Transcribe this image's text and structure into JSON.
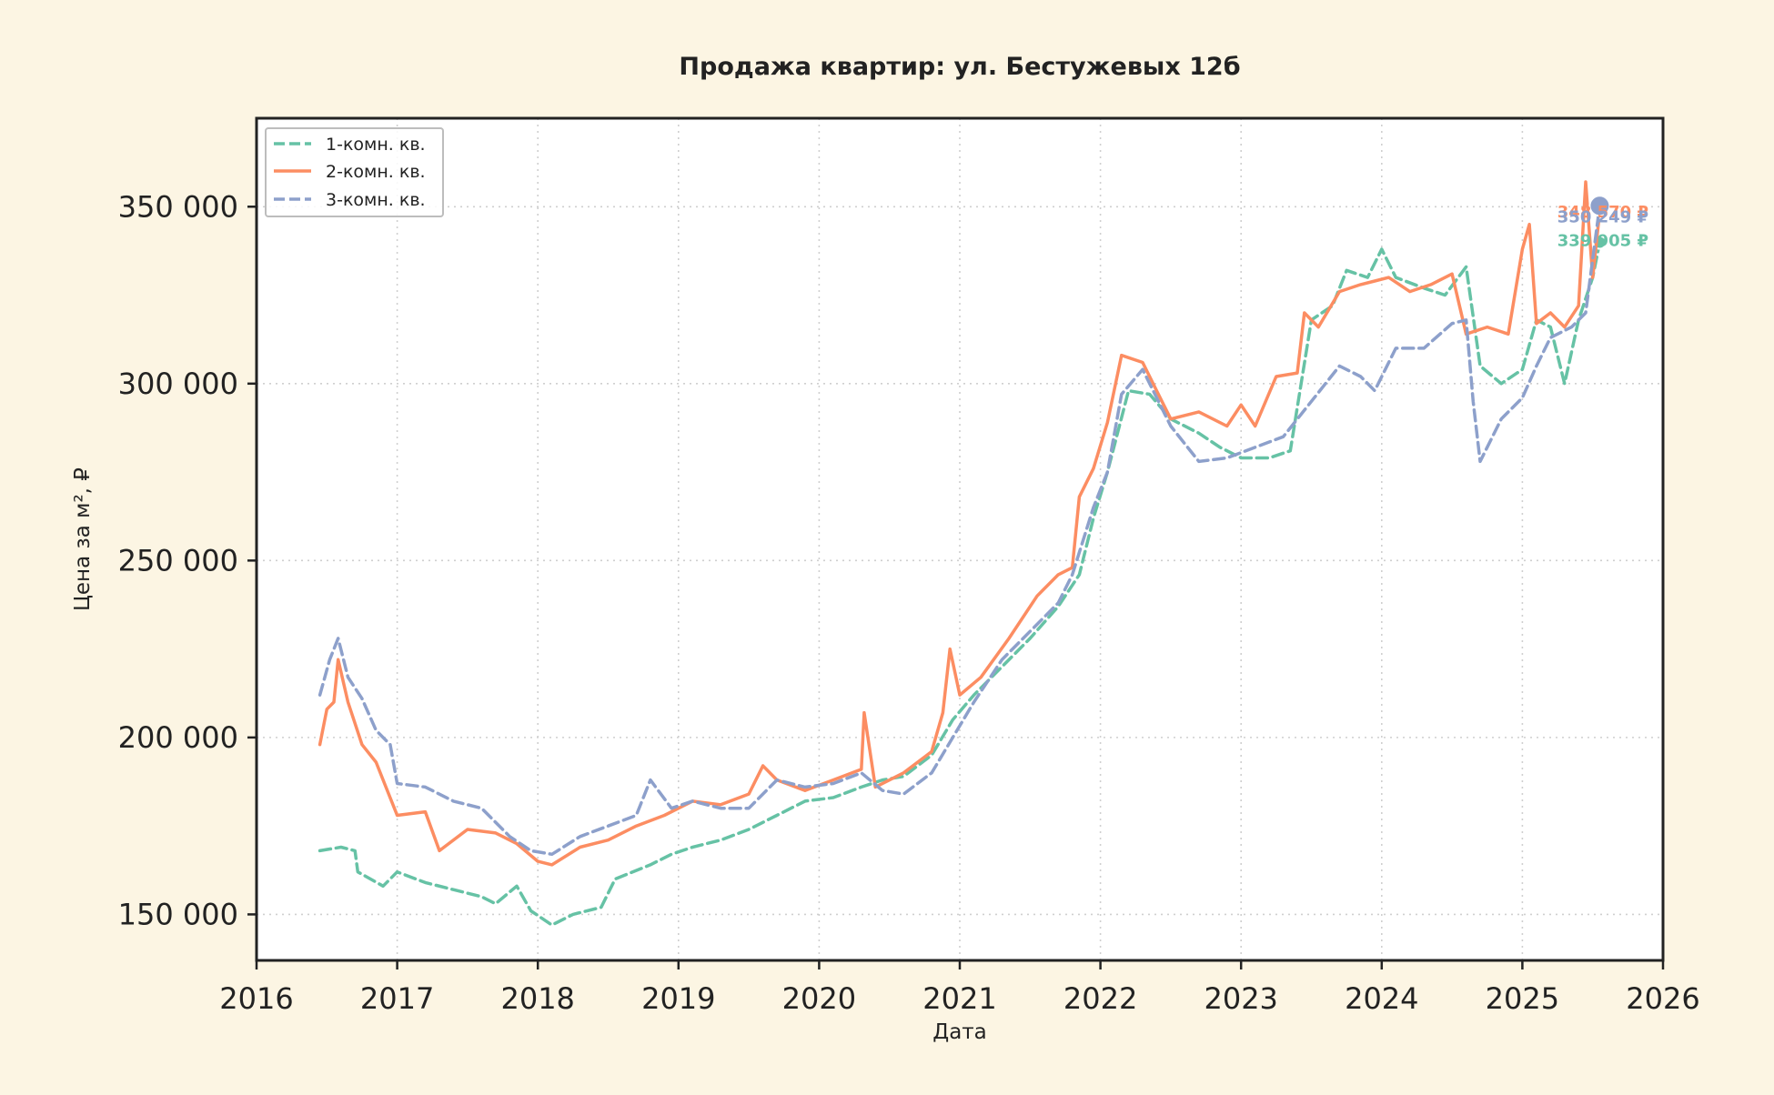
{
  "chart_data": {
    "type": "line",
    "title": "Продажа квартир: ул. Бестужевых 12б",
    "xlabel": "Дата",
    "ylabel": "Цена за м², ₽",
    "xlim": [
      2016,
      2026
    ],
    "ylim": [
      137000,
      375000
    ],
    "x_ticks": [
      "2016",
      "2017",
      "2018",
      "2019",
      "2020",
      "2021",
      "2022",
      "2023",
      "2024",
      "2025",
      "2026"
    ],
    "y_ticks": [
      "150 000",
      "200 000",
      "250 000",
      "300 000",
      "350 000"
    ],
    "grid": true,
    "legend_position": "top-left",
    "series": [
      {
        "name": "1-комн. кв.",
        "color": "#66c2a5",
        "dash": "dashed",
        "end_label": "339 905 ₽",
        "points": [
          [
            2016.45,
            168000
          ],
          [
            2016.6,
            169000
          ],
          [
            2016.7,
            168000
          ],
          [
            2016.72,
            162000
          ],
          [
            2016.9,
            158000
          ],
          [
            2017.0,
            162000
          ],
          [
            2017.2,
            159000
          ],
          [
            2017.4,
            157000
          ],
          [
            2017.6,
            155000
          ],
          [
            2017.7,
            153000
          ],
          [
            2017.85,
            158000
          ],
          [
            2017.95,
            151000
          ],
          [
            2018.1,
            147000
          ],
          [
            2018.25,
            150000
          ],
          [
            2018.45,
            152000
          ],
          [
            2018.55,
            160000
          ],
          [
            2018.8,
            164000
          ],
          [
            2018.95,
            167000
          ],
          [
            2019.1,
            169000
          ],
          [
            2019.3,
            171000
          ],
          [
            2019.5,
            174000
          ],
          [
            2019.7,
            178000
          ],
          [
            2019.9,
            182000
          ],
          [
            2020.1,
            183000
          ],
          [
            2020.3,
            186000
          ],
          [
            2020.45,
            188000
          ],
          [
            2020.6,
            189000
          ],
          [
            2020.8,
            195000
          ],
          [
            2020.95,
            205000
          ],
          [
            2021.1,
            212000
          ],
          [
            2021.3,
            220000
          ],
          [
            2021.5,
            228000
          ],
          [
            2021.7,
            237000
          ],
          [
            2021.85,
            246000
          ],
          [
            2021.95,
            262000
          ],
          [
            2022.05,
            275000
          ],
          [
            2022.2,
            298000
          ],
          [
            2022.35,
            297000
          ],
          [
            2022.5,
            290000
          ],
          [
            2022.7,
            286000
          ],
          [
            2022.85,
            282000
          ],
          [
            2023.0,
            279000
          ],
          [
            2023.2,
            279000
          ],
          [
            2023.35,
            281000
          ],
          [
            2023.5,
            318000
          ],
          [
            2023.65,
            322000
          ],
          [
            2023.75,
            332000
          ],
          [
            2023.9,
            330000
          ],
          [
            2024.0,
            338000
          ],
          [
            2024.1,
            330000
          ],
          [
            2024.3,
            327000
          ],
          [
            2024.45,
            325000
          ],
          [
            2024.6,
            333000
          ],
          [
            2024.7,
            305000
          ],
          [
            2024.85,
            300000
          ],
          [
            2025.0,
            304000
          ],
          [
            2025.1,
            318000
          ],
          [
            2025.2,
            316000
          ],
          [
            2025.3,
            300000
          ],
          [
            2025.4,
            318000
          ],
          [
            2025.5,
            330000
          ],
          [
            2025.55,
            339905
          ]
        ]
      },
      {
        "name": "2-комн. кв.",
        "color": "#fc8d62",
        "dash": "solid",
        "end_label": "348 570 ₽",
        "points": [
          [
            2016.45,
            198000
          ],
          [
            2016.5,
            208000
          ],
          [
            2016.55,
            210000
          ],
          [
            2016.58,
            222000
          ],
          [
            2016.65,
            210000
          ],
          [
            2016.75,
            198000
          ],
          [
            2016.85,
            193000
          ],
          [
            2016.92,
            186000
          ],
          [
            2017.0,
            178000
          ],
          [
            2017.2,
            179000
          ],
          [
            2017.3,
            168000
          ],
          [
            2017.5,
            174000
          ],
          [
            2017.7,
            173000
          ],
          [
            2017.85,
            170000
          ],
          [
            2018.0,
            165000
          ],
          [
            2018.1,
            164000
          ],
          [
            2018.3,
            169000
          ],
          [
            2018.5,
            171000
          ],
          [
            2018.7,
            175000
          ],
          [
            2018.9,
            178000
          ],
          [
            2019.1,
            182000
          ],
          [
            2019.3,
            181000
          ],
          [
            2019.5,
            184000
          ],
          [
            2019.6,
            192000
          ],
          [
            2019.7,
            188000
          ],
          [
            2019.9,
            185000
          ],
          [
            2020.1,
            188000
          ],
          [
            2020.3,
            191000
          ],
          [
            2020.32,
            207000
          ],
          [
            2020.4,
            186000
          ],
          [
            2020.6,
            190000
          ],
          [
            2020.8,
            196000
          ],
          [
            2020.88,
            207000
          ],
          [
            2020.93,
            225000
          ],
          [
            2021.0,
            212000
          ],
          [
            2021.15,
            217000
          ],
          [
            2021.35,
            228000
          ],
          [
            2021.55,
            240000
          ],
          [
            2021.7,
            246000
          ],
          [
            2021.8,
            248000
          ],
          [
            2021.85,
            268000
          ],
          [
            2021.95,
            276000
          ],
          [
            2022.05,
            289000
          ],
          [
            2022.15,
            308000
          ],
          [
            2022.3,
            306000
          ],
          [
            2022.4,
            298000
          ],
          [
            2022.5,
            290000
          ],
          [
            2022.7,
            292000
          ],
          [
            2022.9,
            288000
          ],
          [
            2023.0,
            294000
          ],
          [
            2023.1,
            288000
          ],
          [
            2023.25,
            302000
          ],
          [
            2023.4,
            303000
          ],
          [
            2023.45,
            320000
          ],
          [
            2023.55,
            316000
          ],
          [
            2023.7,
            326000
          ],
          [
            2023.85,
            328000
          ],
          [
            2023.95,
            329000
          ],
          [
            2024.05,
            330000
          ],
          [
            2024.2,
            326000
          ],
          [
            2024.35,
            328000
          ],
          [
            2024.5,
            331000
          ],
          [
            2024.6,
            314000
          ],
          [
            2024.75,
            316000
          ],
          [
            2024.9,
            314000
          ],
          [
            2025.0,
            338000
          ],
          [
            2025.05,
            345000
          ],
          [
            2025.1,
            317000
          ],
          [
            2025.2,
            320000
          ],
          [
            2025.3,
            316000
          ],
          [
            2025.4,
            322000
          ],
          [
            2025.45,
            357000
          ],
          [
            2025.5,
            330000
          ],
          [
            2025.55,
            348570
          ]
        ]
      },
      {
        "name": "3-комн. кв.",
        "color": "#8da0cb",
        "dash": "dashed",
        "end_label": "350 249 ₽",
        "points": [
          [
            2016.45,
            212000
          ],
          [
            2016.52,
            222000
          ],
          [
            2016.58,
            228000
          ],
          [
            2016.65,
            217000
          ],
          [
            2016.75,
            211000
          ],
          [
            2016.85,
            202000
          ],
          [
            2016.95,
            198000
          ],
          [
            2017.0,
            187000
          ],
          [
            2017.2,
            186000
          ],
          [
            2017.4,
            182000
          ],
          [
            2017.6,
            180000
          ],
          [
            2017.8,
            172000
          ],
          [
            2017.95,
            168000
          ],
          [
            2018.1,
            167000
          ],
          [
            2018.3,
            172000
          ],
          [
            2018.5,
            175000
          ],
          [
            2018.7,
            178000
          ],
          [
            2018.8,
            188000
          ],
          [
            2018.95,
            180000
          ],
          [
            2019.1,
            182000
          ],
          [
            2019.3,
            180000
          ],
          [
            2019.5,
            180000
          ],
          [
            2019.7,
            188000
          ],
          [
            2019.9,
            186000
          ],
          [
            2020.1,
            187000
          ],
          [
            2020.3,
            190000
          ],
          [
            2020.45,
            185000
          ],
          [
            2020.6,
            184000
          ],
          [
            2020.8,
            190000
          ],
          [
            2020.95,
            200000
          ],
          [
            2021.1,
            210000
          ],
          [
            2021.3,
            222000
          ],
          [
            2021.5,
            230000
          ],
          [
            2021.7,
            238000
          ],
          [
            2021.8,
            246000
          ],
          [
            2021.95,
            265000
          ],
          [
            2022.05,
            275000
          ],
          [
            2022.15,
            297000
          ],
          [
            2022.3,
            304000
          ],
          [
            2022.5,
            288000
          ],
          [
            2022.7,
            278000
          ],
          [
            2022.9,
            279000
          ],
          [
            2023.1,
            282000
          ],
          [
            2023.3,
            285000
          ],
          [
            2023.5,
            295000
          ],
          [
            2023.7,
            305000
          ],
          [
            2023.85,
            302000
          ],
          [
            2023.95,
            298000
          ],
          [
            2024.1,
            310000
          ],
          [
            2024.3,
            310000
          ],
          [
            2024.5,
            317000
          ],
          [
            2024.6,
            318000
          ],
          [
            2024.65,
            295000
          ],
          [
            2024.7,
            278000
          ],
          [
            2024.85,
            290000
          ],
          [
            2025.0,
            296000
          ],
          [
            2025.1,
            305000
          ],
          [
            2025.2,
            313000
          ],
          [
            2025.35,
            316000
          ],
          [
            2025.45,
            320000
          ],
          [
            2025.55,
            350249
          ]
        ]
      }
    ]
  }
}
